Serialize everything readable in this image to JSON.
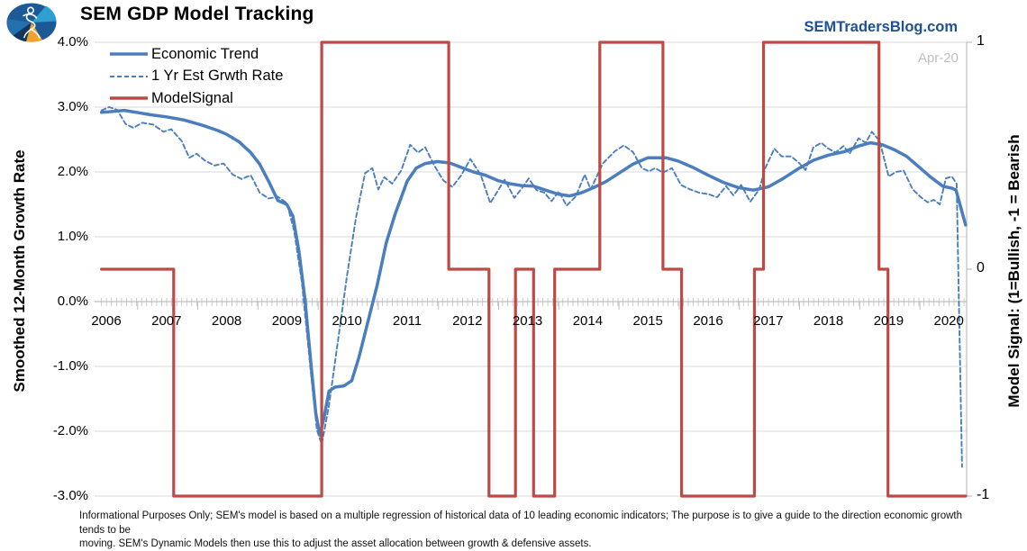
{
  "header": {
    "title": "SEM GDP Model Tracking",
    "site": "SEMTradersBlog.com",
    "logo_icon": "sem-stick-figure-logo"
  },
  "colors": {
    "trend_blue": "#4A7EBD",
    "signal_red": "#BE4A45",
    "site_blue": "#1F5096",
    "annotation_gray": "#BFBFBF",
    "gridline": "#D9D9D9",
    "axis_line": "#BFBFBF"
  },
  "chart_data": {
    "type": "line",
    "title": "SEM GDP Model Tracking",
    "annotation": "Apr-20",
    "x_axis": {
      "tick_labels": [
        "2006",
        "2007",
        "2008",
        "2009",
        "2010",
        "2011",
        "2012",
        "2013",
        "2014",
        "2015",
        "2016",
        "2017",
        "2018",
        "2019",
        "2020"
      ],
      "range": [
        2005.92,
        2020.33
      ]
    },
    "y_left": {
      "label": "Smoothed 12-Month Growth Rate",
      "tick_labels": [
        "4.0%",
        "3.0%",
        "2.0%",
        "1.0%",
        "0.0%",
        "-1.0%",
        "-2.0%",
        "-3.0%"
      ],
      "tick_values": [
        4,
        3,
        2,
        1,
        0,
        -1,
        -2,
        -3
      ],
      "range": [
        -3,
        4
      ],
      "grid": true
    },
    "y_right": {
      "label": "Model Signal: (1=Bullish, -1 = Bearish",
      "tick_labels": [
        "1",
        "0",
        "-1"
      ],
      "tick_values": [
        1,
        0,
        -1
      ],
      "range": [
        -1,
        1
      ]
    },
    "legend_position": "top-left-inside",
    "series": [
      {
        "name": "Economic Trend",
        "style": "solid",
        "color": "#4A7EBD",
        "axis": "left",
        "points": [
          [
            2005.92,
            2.92
          ],
          [
            2006.08,
            2.93
          ],
          [
            2006.3,
            2.95
          ],
          [
            2006.5,
            2.92
          ],
          [
            2006.75,
            2.88
          ],
          [
            2007.0,
            2.85
          ],
          [
            2007.3,
            2.8
          ],
          [
            2007.6,
            2.72
          ],
          [
            2007.85,
            2.64
          ],
          [
            2008.0,
            2.58
          ],
          [
            2008.2,
            2.47
          ],
          [
            2008.4,
            2.3
          ],
          [
            2008.55,
            2.12
          ],
          [
            2008.7,
            1.85
          ],
          [
            2008.85,
            1.56
          ],
          [
            2009.0,
            1.5
          ],
          [
            2009.1,
            1.32
          ],
          [
            2009.2,
            0.78
          ],
          [
            2009.3,
            0.05
          ],
          [
            2009.4,
            -0.95
          ],
          [
            2009.48,
            -1.72
          ],
          [
            2009.55,
            -2.06
          ],
          [
            2009.62,
            -1.78
          ],
          [
            2009.7,
            -1.38
          ],
          [
            2009.8,
            -1.32
          ],
          [
            2009.95,
            -1.3
          ],
          [
            2010.08,
            -1.22
          ],
          [
            2010.2,
            -0.85
          ],
          [
            2010.35,
            -0.3
          ],
          [
            2010.5,
            0.25
          ],
          [
            2010.65,
            0.9
          ],
          [
            2010.8,
            1.35
          ],
          [
            2011.0,
            1.86
          ],
          [
            2011.15,
            2.06
          ],
          [
            2011.3,
            2.13
          ],
          [
            2011.5,
            2.16
          ],
          [
            2011.7,
            2.14
          ],
          [
            2011.9,
            2.07
          ],
          [
            2012.1,
            2.0
          ],
          [
            2012.3,
            1.95
          ],
          [
            2012.5,
            1.87
          ],
          [
            2012.7,
            1.82
          ],
          [
            2012.9,
            1.79
          ],
          [
            2013.1,
            1.78
          ],
          [
            2013.3,
            1.72
          ],
          [
            2013.5,
            1.66
          ],
          [
            2013.7,
            1.63
          ],
          [
            2013.9,
            1.68
          ],
          [
            2014.1,
            1.76
          ],
          [
            2014.3,
            1.85
          ],
          [
            2014.5,
            1.97
          ],
          [
            2014.75,
            2.12
          ],
          [
            2015.0,
            2.22
          ],
          [
            2015.3,
            2.22
          ],
          [
            2015.5,
            2.17
          ],
          [
            2015.75,
            2.07
          ],
          [
            2016.0,
            1.95
          ],
          [
            2016.25,
            1.84
          ],
          [
            2016.5,
            1.76
          ],
          [
            2016.75,
            1.72
          ],
          [
            2017.0,
            1.77
          ],
          [
            2017.25,
            1.9
          ],
          [
            2017.5,
            2.05
          ],
          [
            2017.75,
            2.18
          ],
          [
            2018.0,
            2.26
          ],
          [
            2018.25,
            2.31
          ],
          [
            2018.5,
            2.4
          ],
          [
            2018.7,
            2.45
          ],
          [
            2018.9,
            2.42
          ],
          [
            2019.1,
            2.34
          ],
          [
            2019.3,
            2.24
          ],
          [
            2019.5,
            2.08
          ],
          [
            2019.7,
            1.92
          ],
          [
            2019.9,
            1.78
          ],
          [
            2020.05,
            1.75
          ],
          [
            2020.12,
            1.72
          ],
          [
            2020.28,
            1.18
          ]
        ]
      },
      {
        "name": "1 Yr Est Grwth Rate",
        "style": "dashed",
        "color": "#4A7EBD",
        "axis": "left",
        "points": [
          [
            2005.92,
            2.95
          ],
          [
            2006.05,
            3.0
          ],
          [
            2006.18,
            2.96
          ],
          [
            2006.32,
            2.74
          ],
          [
            2006.45,
            2.68
          ],
          [
            2006.6,
            2.76
          ],
          [
            2006.78,
            2.73
          ],
          [
            2006.95,
            2.62
          ],
          [
            2007.08,
            2.66
          ],
          [
            2007.25,
            2.48
          ],
          [
            2007.38,
            2.22
          ],
          [
            2007.5,
            2.28
          ],
          [
            2007.65,
            2.17
          ],
          [
            2007.8,
            2.1
          ],
          [
            2007.95,
            2.13
          ],
          [
            2008.1,
            1.96
          ],
          [
            2008.25,
            1.89
          ],
          [
            2008.4,
            1.95
          ],
          [
            2008.55,
            1.68
          ],
          [
            2008.7,
            1.59
          ],
          [
            2008.85,
            1.62
          ],
          [
            2009.0,
            1.52
          ],
          [
            2009.12,
            1.1
          ],
          [
            2009.25,
            0.3
          ],
          [
            2009.4,
            -1.1
          ],
          [
            2009.5,
            -1.98
          ],
          [
            2009.58,
            -2.2
          ],
          [
            2009.7,
            -1.6
          ],
          [
            2009.85,
            -0.6
          ],
          [
            2010.0,
            0.4
          ],
          [
            2010.15,
            1.3
          ],
          [
            2010.3,
            1.98
          ],
          [
            2010.42,
            2.06
          ],
          [
            2010.52,
            1.73
          ],
          [
            2010.62,
            1.92
          ],
          [
            2010.75,
            1.82
          ],
          [
            2010.9,
            2.02
          ],
          [
            2011.05,
            2.42
          ],
          [
            2011.18,
            2.3
          ],
          [
            2011.3,
            2.38
          ],
          [
            2011.45,
            2.1
          ],
          [
            2011.6,
            1.87
          ],
          [
            2011.75,
            1.77
          ],
          [
            2011.9,
            1.95
          ],
          [
            2012.05,
            2.2
          ],
          [
            2012.22,
            1.96
          ],
          [
            2012.38,
            1.52
          ],
          [
            2012.5,
            1.7
          ],
          [
            2012.62,
            1.88
          ],
          [
            2012.78,
            1.6
          ],
          [
            2012.9,
            1.74
          ],
          [
            2013.02,
            1.9
          ],
          [
            2013.15,
            1.72
          ],
          [
            2013.28,
            1.68
          ],
          [
            2013.4,
            1.55
          ],
          [
            2013.52,
            1.7
          ],
          [
            2013.65,
            1.48
          ],
          [
            2013.8,
            1.62
          ],
          [
            2013.95,
            1.96
          ],
          [
            2014.05,
            1.73
          ],
          [
            2014.25,
            2.13
          ],
          [
            2014.45,
            2.32
          ],
          [
            2014.6,
            2.41
          ],
          [
            2014.75,
            2.31
          ],
          [
            2014.9,
            2.06
          ],
          [
            2015.02,
            2.01
          ],
          [
            2015.12,
            2.06
          ],
          [
            2015.25,
            1.99
          ],
          [
            2015.4,
            2.06
          ],
          [
            2015.55,
            1.8
          ],
          [
            2015.7,
            1.73
          ],
          [
            2015.85,
            1.68
          ],
          [
            2016.0,
            1.66
          ],
          [
            2016.15,
            1.61
          ],
          [
            2016.3,
            1.78
          ],
          [
            2016.42,
            1.64
          ],
          [
            2016.55,
            1.8
          ],
          [
            2016.7,
            1.54
          ],
          [
            2016.85,
            1.73
          ],
          [
            2016.95,
            2.06
          ],
          [
            2017.1,
            2.36
          ],
          [
            2017.22,
            2.24
          ],
          [
            2017.38,
            2.24
          ],
          [
            2017.5,
            2.15
          ],
          [
            2017.62,
            2.03
          ],
          [
            2017.75,
            2.38
          ],
          [
            2017.88,
            2.45
          ],
          [
            2018.0,
            2.36
          ],
          [
            2018.12,
            2.3
          ],
          [
            2018.25,
            2.4
          ],
          [
            2018.35,
            2.28
          ],
          [
            2018.5,
            2.52
          ],
          [
            2018.62,
            2.45
          ],
          [
            2018.72,
            2.62
          ],
          [
            2018.85,
            2.48
          ],
          [
            2019.0,
            1.93
          ],
          [
            2019.12,
            2.0
          ],
          [
            2019.25,
            2.02
          ],
          [
            2019.4,
            1.73
          ],
          [
            2019.55,
            1.6
          ],
          [
            2019.65,
            1.53
          ],
          [
            2019.75,
            1.57
          ],
          [
            2019.85,
            1.5
          ],
          [
            2019.95,
            1.9
          ],
          [
            2020.05,
            1.93
          ],
          [
            2020.13,
            1.82
          ],
          [
            2020.22,
            -2.55
          ]
        ]
      },
      {
        "name": "ModelSignal",
        "style": "step",
        "color": "#BE4A45",
        "axis": "right",
        "segments": [
          [
            2005.92,
            2007.12,
            0
          ],
          [
            2007.12,
            2009.58,
            -1
          ],
          [
            2009.58,
            2011.69,
            1
          ],
          [
            2011.69,
            2012.36,
            0
          ],
          [
            2012.36,
            2012.8,
            -1
          ],
          [
            2012.8,
            2013.1,
            0
          ],
          [
            2013.1,
            2013.45,
            -1
          ],
          [
            2013.45,
            2014.2,
            0
          ],
          [
            2014.2,
            2015.25,
            1
          ],
          [
            2015.25,
            2015.56,
            0
          ],
          [
            2015.56,
            2016.77,
            -1
          ],
          [
            2016.77,
            2016.92,
            0
          ],
          [
            2016.92,
            2018.84,
            1
          ],
          [
            2018.84,
            2018.99,
            0
          ],
          [
            2018.99,
            2020.28,
            -1
          ]
        ]
      }
    ]
  },
  "footer": {
    "line1": "Informational Purposes Only; SEM's model is based on a multiple regression of historical data of 10 leading economic indicators; The purpose is to give a guide to the direction economic growth tends to be",
    "line2": "moving. SEM's Dynamic Models then use this to adjust the asset allocation between growth & defensive assets."
  }
}
